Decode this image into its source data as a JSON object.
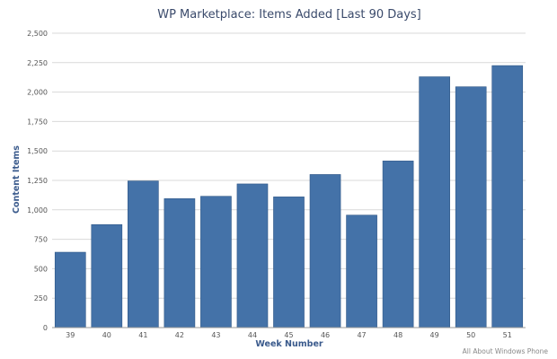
{
  "chart_data": {
    "type": "bar",
    "title": "WP Marketplace: Items Added [Last 90 Days]",
    "xlabel": "Week Number",
    "ylabel": "Content Items",
    "categories": [
      "39",
      "40",
      "41",
      "42",
      "43",
      "44",
      "45",
      "46",
      "47",
      "48",
      "49",
      "50",
      "51"
    ],
    "series": [
      {
        "values": [
          640,
          875,
          1245,
          1095,
          1115,
          1220,
          1110,
          1300,
          955,
          1415,
          2130,
          2045,
          2225
        ]
      }
    ],
    "ylim": [
      0,
      2500
    ],
    "yticks": [
      "0",
      "250",
      "500",
      "750",
      "1,000",
      "1,250",
      "1,500",
      "1,750",
      "2,000",
      "2,250",
      "2,500"
    ],
    "ytick_values": [
      0,
      250,
      500,
      750,
      1000,
      1250,
      1500,
      1750,
      2000,
      2250,
      2500
    ],
    "grid": true,
    "legend": "none",
    "colors": {
      "bar": "#4472a8",
      "bar_border": "#2f5787",
      "grid": "#d9d9d9"
    },
    "credit": "All About Windows Phone"
  }
}
